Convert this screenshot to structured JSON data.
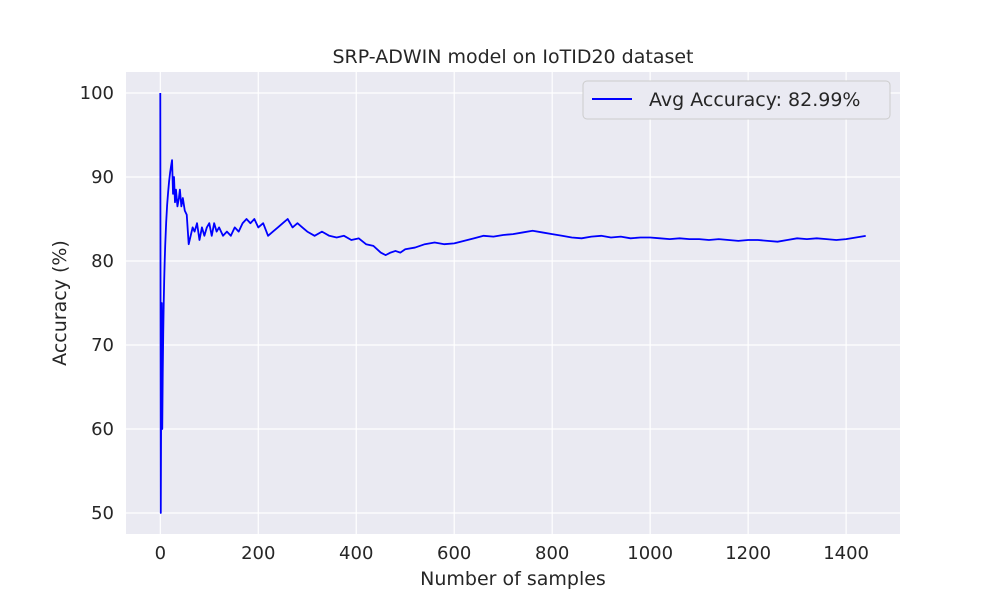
{
  "chart_data": {
    "type": "line",
    "title": "SRP-ADWIN model on IoTID20 dataset",
    "xlabel": "Number of samples",
    "ylabel": "Accuracy (%)",
    "xlim": [
      -70,
      1510
    ],
    "ylim": [
      47.5,
      102.5
    ],
    "xticks": [
      0,
      200,
      400,
      600,
      800,
      1000,
      1200,
      1400
    ],
    "yticks": [
      50,
      60,
      70,
      80,
      90,
      100
    ],
    "grid": true,
    "legend_position": "top-right",
    "series": [
      {
        "name": "Avg Accuracy: 82.99%",
        "color": "#0000ff",
        "x": [
          0,
          1,
          2,
          3,
          4,
          5,
          6,
          7,
          8,
          9,
          10,
          12,
          14,
          16,
          18,
          20,
          22,
          24,
          26,
          28,
          30,
          32,
          35,
          38,
          40,
          43,
          46,
          50,
          54,
          58,
          62,
          66,
          70,
          75,
          80,
          85,
          90,
          95,
          100,
          105,
          110,
          115,
          120,
          128,
          136,
          144,
          152,
          160,
          168,
          176,
          184,
          192,
          200,
          210,
          220,
          230,
          240,
          250,
          260,
          270,
          280,
          290,
          300,
          315,
          330,
          345,
          360,
          375,
          390,
          405,
          420,
          435,
          450,
          460,
          470,
          480,
          490,
          500,
          520,
          540,
          560,
          580,
          600,
          620,
          640,
          660,
          680,
          700,
          720,
          740,
          760,
          780,
          800,
          820,
          840,
          860,
          880,
          900,
          920,
          940,
          960,
          980,
          1000,
          1020,
          1040,
          1060,
          1080,
          1100,
          1120,
          1140,
          1160,
          1180,
          1200,
          1220,
          1240,
          1260,
          1280,
          1300,
          1320,
          1340,
          1360,
          1380,
          1400,
          1420,
          1440
        ],
        "y": [
          100,
          50,
          66.7,
          75,
          60,
          66.7,
          71.4,
          75,
          77.8,
          80,
          81.8,
          84.6,
          86.7,
          88.2,
          89.5,
          90.5,
          91.3,
          92,
          88,
          90,
          87,
          88.5,
          86.5,
          87.5,
          88.5,
          86.5,
          87.5,
          86,
          85.5,
          82,
          83,
          84,
          83.5,
          84.5,
          82.5,
          84,
          83,
          84,
          84.5,
          83,
          84.5,
          83.5,
          84,
          83,
          83.5,
          83,
          84,
          83.5,
          84.5,
          85,
          84.5,
          85,
          84,
          84.5,
          83,
          83.5,
          84,
          84.5,
          85,
          84,
          84.5,
          84,
          83.5,
          83,
          83.5,
          83,
          82.8,
          83,
          82.5,
          82.7,
          82,
          81.8,
          81,
          80.7,
          81,
          81.2,
          81,
          81.4,
          81.6,
          82,
          82.2,
          82,
          82.1,
          82.4,
          82.7,
          83,
          82.9,
          83.1,
          83.2,
          83.4,
          83.6,
          83.4,
          83.2,
          83,
          82.8,
          82.7,
          82.9,
          83,
          82.8,
          82.9,
          82.7,
          82.8,
          82.8,
          82.7,
          82.6,
          82.7,
          82.6,
          82.6,
          82.5,
          82.6,
          82.5,
          82.4,
          82.5,
          82.5,
          82.4,
          82.3,
          82.5,
          82.7,
          82.6,
          82.7,
          82.6,
          82.5,
          82.6,
          82.8,
          82.99
        ]
      }
    ]
  }
}
